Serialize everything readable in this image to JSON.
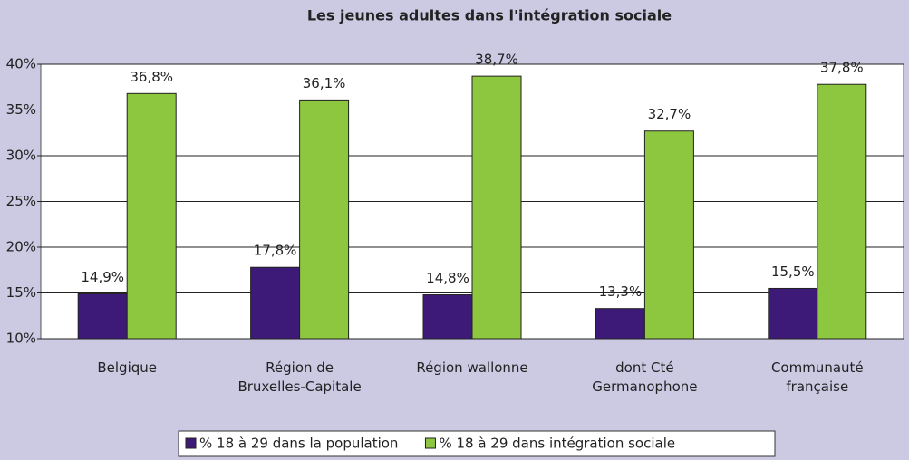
{
  "chart_data": {
    "type": "bar",
    "title": "Les jeunes adultes dans l'intégration sociale",
    "categories": [
      "Belgique",
      "Région de\nBruxelles-Capitale",
      "Région wallonne",
      "dont Cté\nGermanophone",
      "Communauté\nfrançaise"
    ],
    "series": [
      {
        "name": "% 18 à 29 dans la population",
        "color": "#3d1a78",
        "values": [
          14.9,
          17.8,
          14.8,
          13.3,
          15.5
        ],
        "value_labels": [
          "14,9%",
          "17,8%",
          "14,8%",
          "13,3%",
          "15,5%"
        ]
      },
      {
        "name": "% 18 à 29 dans intégration sociale",
        "color": "#8dc63f",
        "values": [
          36.8,
          36.1,
          38.7,
          32.7,
          37.8
        ],
        "value_labels": [
          "36,8%",
          "36,1%",
          "38,7%",
          "32,7%",
          "37,8%"
        ]
      }
    ],
    "ylim": [
      10,
      40
    ],
    "yticks": [
      {
        "value": 10,
        "label": "10%"
      },
      {
        "value": 15,
        "label": "15%"
      },
      {
        "value": 20,
        "label": "20%"
      },
      {
        "value": 25,
        "label": "25%"
      },
      {
        "value": 30,
        "label": "30%"
      },
      {
        "value": 35,
        "label": "35%"
      },
      {
        "value": 40,
        "label": "40%"
      }
    ],
    "grid": true,
    "legend": "bottom"
  }
}
